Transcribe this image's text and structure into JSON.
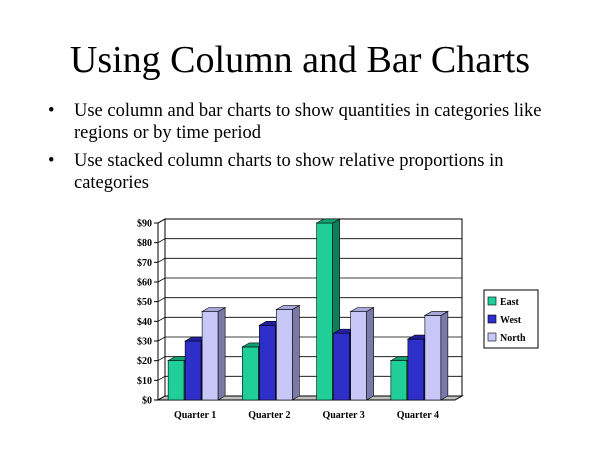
{
  "slide": {
    "title": "Using Column and Bar Charts",
    "bullets": [
      "Use column and bar charts to show quantities in categories like regions or by time period",
      "Use stacked column charts to show relative proportions in categories"
    ]
  },
  "chart_data": {
    "type": "bar",
    "title": "",
    "xlabel": "",
    "ylabel": "",
    "categories": [
      "Quarter 1",
      "Quarter 2",
      "Quarter 3",
      "Quarter 4"
    ],
    "series": [
      {
        "name": "East",
        "values": [
          20,
          27,
          90,
          20
        ],
        "color": "#1fcf97",
        "side": "#0f7f5a",
        "top": "#12a070"
      },
      {
        "name": "West",
        "values": [
          30,
          38,
          34,
          31
        ],
        "color": "#2e2ec8",
        "side": "#16167a",
        "top": "#1f1fa0"
      },
      {
        "name": "North",
        "values": [
          45,
          46,
          45,
          43
        ],
        "color": "#c8c8f8",
        "side": "#7a7aa8",
        "top": "#a8a8dc"
      }
    ],
    "ylim": [
      0,
      90
    ],
    "yticks": [
      "$0",
      "$10",
      "$20",
      "$30",
      "$40",
      "$50",
      "$60",
      "$70",
      "$80",
      "$90"
    ],
    "grid": true,
    "legend_position": "right",
    "wall_color": "#ffffff"
  }
}
